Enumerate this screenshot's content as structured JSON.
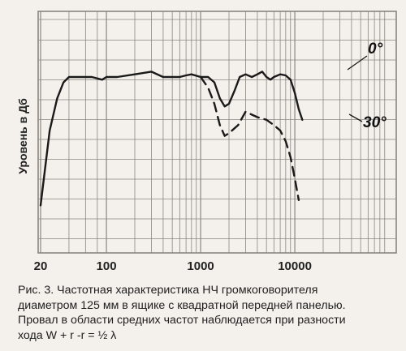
{
  "chart_data": {
    "type": "line",
    "title": "",
    "xlabel": "",
    "ylabel": "Уровень в Дб",
    "x_scale": "log",
    "xlim": [
      20,
      12000
    ],
    "grid": true,
    "x_ticks": [
      {
        "value": 20,
        "label": "20"
      },
      {
        "value": 100,
        "label": "100"
      },
      {
        "value": 1000,
        "label": "1000"
      },
      {
        "value": 10000,
        "label": "10000"
      }
    ],
    "series": [
      {
        "name": "0°",
        "style": "solid",
        "points": [
          [
            20,
            -24
          ],
          [
            22,
            -18
          ],
          [
            25,
            -10
          ],
          [
            30,
            -4
          ],
          [
            35,
            -1
          ],
          [
            40,
            0
          ],
          [
            50,
            0
          ],
          [
            70,
            0
          ],
          [
            90,
            -0.5
          ],
          [
            100,
            0
          ],
          [
            130,
            0
          ],
          [
            200,
            0.5
          ],
          [
            300,
            1
          ],
          [
            400,
            0
          ],
          [
            500,
            0
          ],
          [
            600,
            0
          ],
          [
            700,
            0.3
          ],
          [
            800,
            0.5
          ],
          [
            1000,
            0
          ],
          [
            1200,
            0
          ],
          [
            1400,
            -1
          ],
          [
            1600,
            -4
          ],
          [
            1800,
            -5.5
          ],
          [
            2000,
            -5
          ],
          [
            2300,
            -2.5
          ],
          [
            2600,
            0
          ],
          [
            3000,
            0.5
          ],
          [
            3500,
            0
          ],
          [
            4000,
            0.5
          ],
          [
            4500,
            1
          ],
          [
            5000,
            0
          ],
          [
            5500,
            -0.5
          ],
          [
            6000,
            0
          ],
          [
            7000,
            0.5
          ],
          [
            8000,
            0.3
          ],
          [
            9000,
            -0.5
          ],
          [
            10000,
            -3
          ],
          [
            11000,
            -6
          ],
          [
            12000,
            -8
          ]
        ]
      },
      {
        "name": "30°",
        "style": "dashed",
        "points": [
          [
            1000,
            0
          ],
          [
            1200,
            -2
          ],
          [
            1400,
            -5
          ],
          [
            1600,
            -9
          ],
          [
            1800,
            -11
          ],
          [
            2000,
            -10.5
          ],
          [
            2500,
            -9
          ],
          [
            3000,
            -6.5
          ],
          [
            4000,
            -7.5
          ],
          [
            5000,
            -8
          ],
          [
            6000,
            -9
          ],
          [
            7000,
            -10
          ],
          [
            8000,
            -12
          ],
          [
            9000,
            -15
          ],
          [
            10000,
            -19
          ],
          [
            11000,
            -23
          ]
        ]
      }
    ]
  },
  "caption": {
    "lines": [
      "Рис. 3. Частотная характеристика НЧ громкоговорителя",
      "диаметром 125 мм в ящике с квадратной передней панелью.",
      "Провал в области средних частот наблюдается при разности",
      "хода W + r -r = ½ λ"
    ]
  },
  "colors": {
    "background": "#f4f1ec",
    "grid": "#8a857f",
    "curve": "#1a1a1a"
  }
}
